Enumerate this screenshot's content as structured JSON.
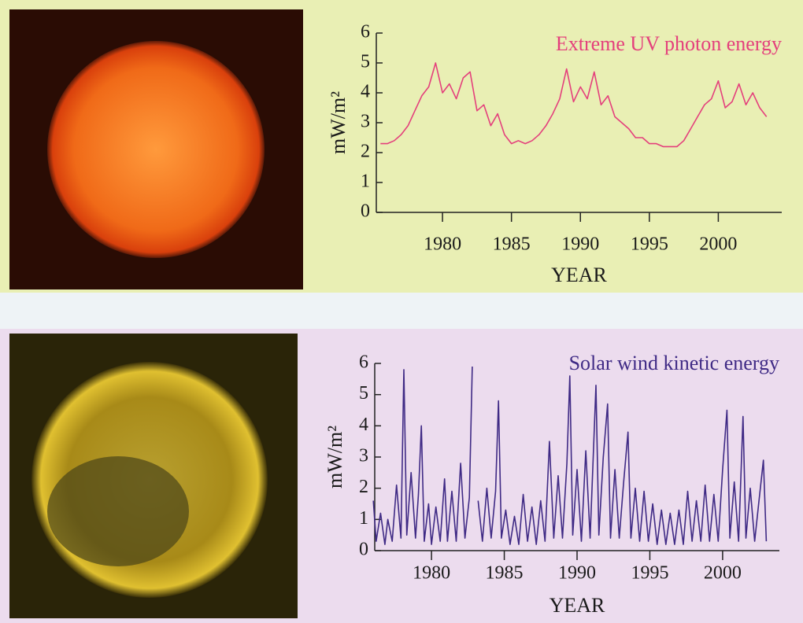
{
  "chart_data": [
    {
      "type": "line",
      "title": "Extreme UV photon energy",
      "xlabel": "YEAR",
      "ylabel": "mW/m²",
      "color": "#e4407c",
      "x": [
        1975.5,
        1976,
        1976.5,
        1977,
        1977.5,
        1978,
        1978.5,
        1979,
        1979.5,
        1980,
        1980.5,
        1981,
        1981.5,
        1982,
        1982.5,
        1983,
        1983.5,
        1984,
        1984.5,
        1985,
        1985.5,
        1986,
        1986.5,
        1987,
        1987.5,
        1988,
        1988.5,
        1989,
        1989.5,
        1990,
        1990.5,
        1991,
        1991.5,
        1992,
        1992.5,
        1993,
        1993.5,
        1994,
        1994.5,
        1995,
        1995.5,
        1996,
        1996.5,
        1997,
        1997.5,
        1998,
        1998.5,
        1999,
        1999.5,
        2000,
        2000.5,
        2001,
        2001.5,
        2002,
        2002.5,
        2003,
        2003.5
      ],
      "values": [
        2.3,
        2.3,
        2.4,
        2.6,
        2.9,
        3.4,
        3.9,
        4.2,
        5.0,
        4.0,
        4.3,
        3.8,
        4.5,
        4.7,
        3.4,
        3.6,
        2.9,
        3.3,
        2.6,
        2.3,
        2.4,
        2.3,
        2.4,
        2.6,
        2.9,
        3.3,
        3.8,
        4.8,
        3.7,
        4.2,
        3.8,
        4.7,
        3.6,
        3.9,
        3.2,
        3.0,
        2.8,
        2.5,
        2.5,
        2.3,
        2.3,
        2.2,
        2.2,
        2.2,
        2.4,
        2.8,
        3.2,
        3.6,
        3.8,
        4.4,
        3.5,
        3.7,
        4.3,
        3.6,
        4.0,
        3.5,
        3.2
      ],
      "xlim": [
        1975.2,
        2004.6
      ],
      "xticks": [
        1980,
        1985,
        1990,
        1995,
        2000
      ],
      "ylim": [
        0,
        6
      ],
      "yticks": [
        0,
        1,
        2,
        3,
        4,
        5,
        6
      ]
    },
    {
      "type": "line",
      "title": "Solar wind kinetic energy",
      "xlabel": "YEAR",
      "ylabel": "mW/m²",
      "color": "#3f2a85",
      "x": [
        1976.0,
        1976.2,
        1976.5,
        1976.8,
        1977.0,
        1977.3,
        1977.6,
        1977.9,
        1978.1,
        1978.3,
        1978.6,
        1978.9,
        1979.1,
        1979.3,
        1979.5,
        1979.8,
        1980.0,
        1980.3,
        1980.6,
        1980.9,
        1981.1,
        1981.4,
        1981.7,
        1982.0,
        1982.3,
        1982.6,
        1982.8,
        1983.0,
        1983.2,
        1983.5,
        1983.8,
        1984.1,
        1984.4,
        1984.6,
        1984.8,
        1985.1,
        1985.4,
        1985.7,
        1986.0,
        1986.3,
        1986.6,
        1986.9,
        1987.2,
        1987.5,
        1987.8,
        1988.1,
        1988.4,
        1988.7,
        1989.0,
        1989.3,
        1989.5,
        1989.7,
        1990.0,
        1990.3,
        1990.6,
        1990.9,
        1991.3,
        1991.5,
        1991.8,
        1992.1,
        1992.3,
        1992.6,
        1992.9,
        1993.2,
        1993.5,
        1993.7,
        1994.0,
        1994.3,
        1994.6,
        1994.9,
        1995.2,
        1995.5,
        1995.8,
        1996.1,
        1996.4,
        1996.7,
        1997.0,
        1997.3,
        1997.6,
        1997.9,
        1998.2,
        1998.5,
        1998.8,
        1999.1,
        1999.4,
        1999.7,
        2000.0,
        2000.3,
        2000.5,
        2000.8,
        2001.1,
        2001.4,
        2001.6,
        2001.9,
        2002.2,
        2002.5,
        2002.8,
        2003.0
      ],
      "values": [
        1.6,
        0.3,
        1.2,
        0.2,
        1.0,
        0.3,
        2.1,
        0.4,
        5.8,
        0.5,
        2.5,
        0.4,
        1.8,
        4.0,
        0.3,
        1.5,
        0.2,
        1.4,
        0.3,
        2.3,
        0.3,
        1.9,
        0.3,
        2.8,
        0.4,
        1.7,
        5.9,
        null,
        1.6,
        0.3,
        2.0,
        0.4,
        1.9,
        4.8,
        0.4,
        1.3,
        0.2,
        1.1,
        0.2,
        1.8,
        0.3,
        1.4,
        0.2,
        1.6,
        0.3,
        3.5,
        0.4,
        2.4,
        0.4,
        2.8,
        5.6,
        0.5,
        2.6,
        0.3,
        3.2,
        0.4,
        5.3,
        0.5,
        3.0,
        4.7,
        0.4,
        2.6,
        0.4,
        2.2,
        3.8,
        0.4,
        2.0,
        0.3,
        1.9,
        0.3,
        1.5,
        0.2,
        1.3,
        0.2,
        1.2,
        0.2,
        1.3,
        0.2,
        1.9,
        0.3,
        1.6,
        0.3,
        2.1,
        0.3,
        1.8,
        0.3,
        2.6,
        4.5,
        0.4,
        2.2,
        0.3,
        4.3,
        0.4,
        2.0,
        0.3,
        1.6,
        2.9,
        0.3
      ],
      "xlim": [
        1976.1,
        2003.9
      ],
      "xticks": [
        1980,
        1985,
        1990,
        1995,
        2000
      ],
      "ylim": [
        0,
        6
      ],
      "yticks": [
        0,
        1,
        2,
        3,
        4,
        5,
        6
      ]
    }
  ]
}
